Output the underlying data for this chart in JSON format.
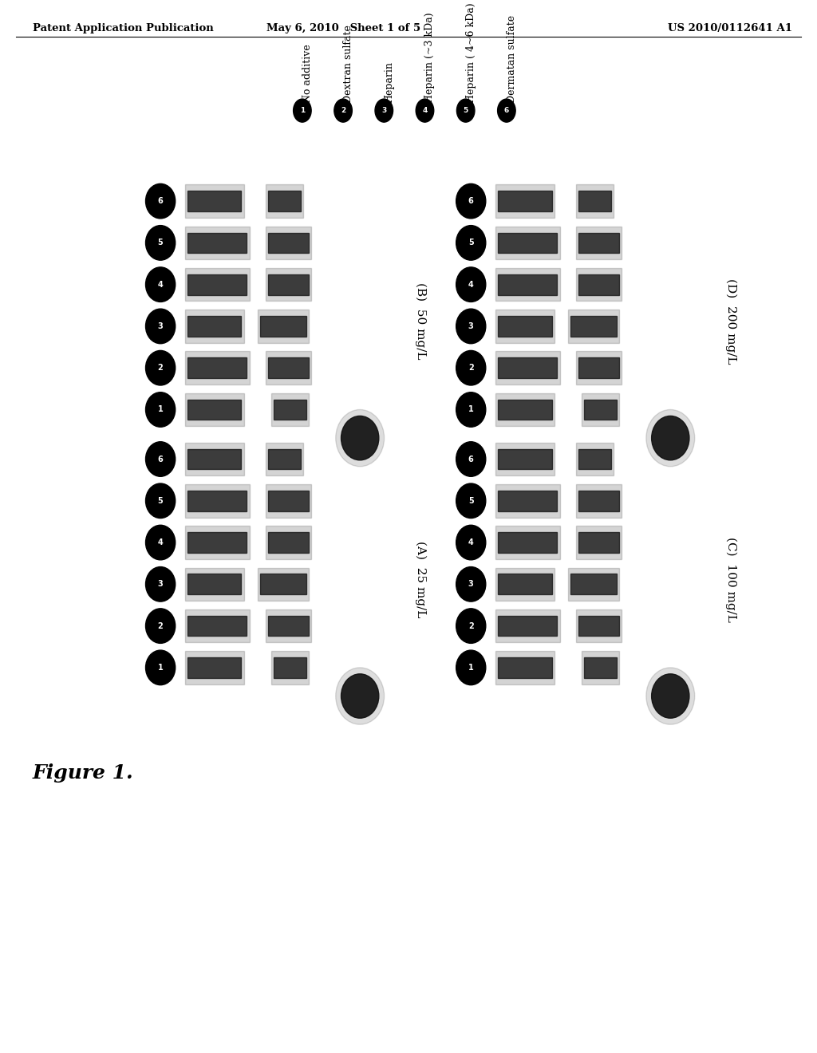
{
  "header_left": "Patent Application Publication",
  "header_mid": "May 6, 2010   Sheet 1 of 5",
  "header_right": "US 2010/0112641 A1",
  "figure_label": "Figure 1.",
  "legend_items": [
    {
      "num": "1",
      "text": "No additive"
    },
    {
      "num": "2",
      "text": "Dextran sulfate"
    },
    {
      "num": "3",
      "text": "Heparin"
    },
    {
      "num": "4",
      "text": "Heparin (~3 kDa)"
    },
    {
      "num": "5",
      "text": "Heparin ( 4~6 kDa)"
    },
    {
      "num": "6",
      "text": "Dermatan sulfate"
    }
  ],
  "panel_order": [
    "B",
    "D",
    "A",
    "C"
  ],
  "panel_labels": [
    "(B) 50 mg/L",
    "(D) 200 mg/L",
    "(A) 25 mg/L",
    "(C) 100 mg/L"
  ],
  "bg_color": "#ffffff"
}
